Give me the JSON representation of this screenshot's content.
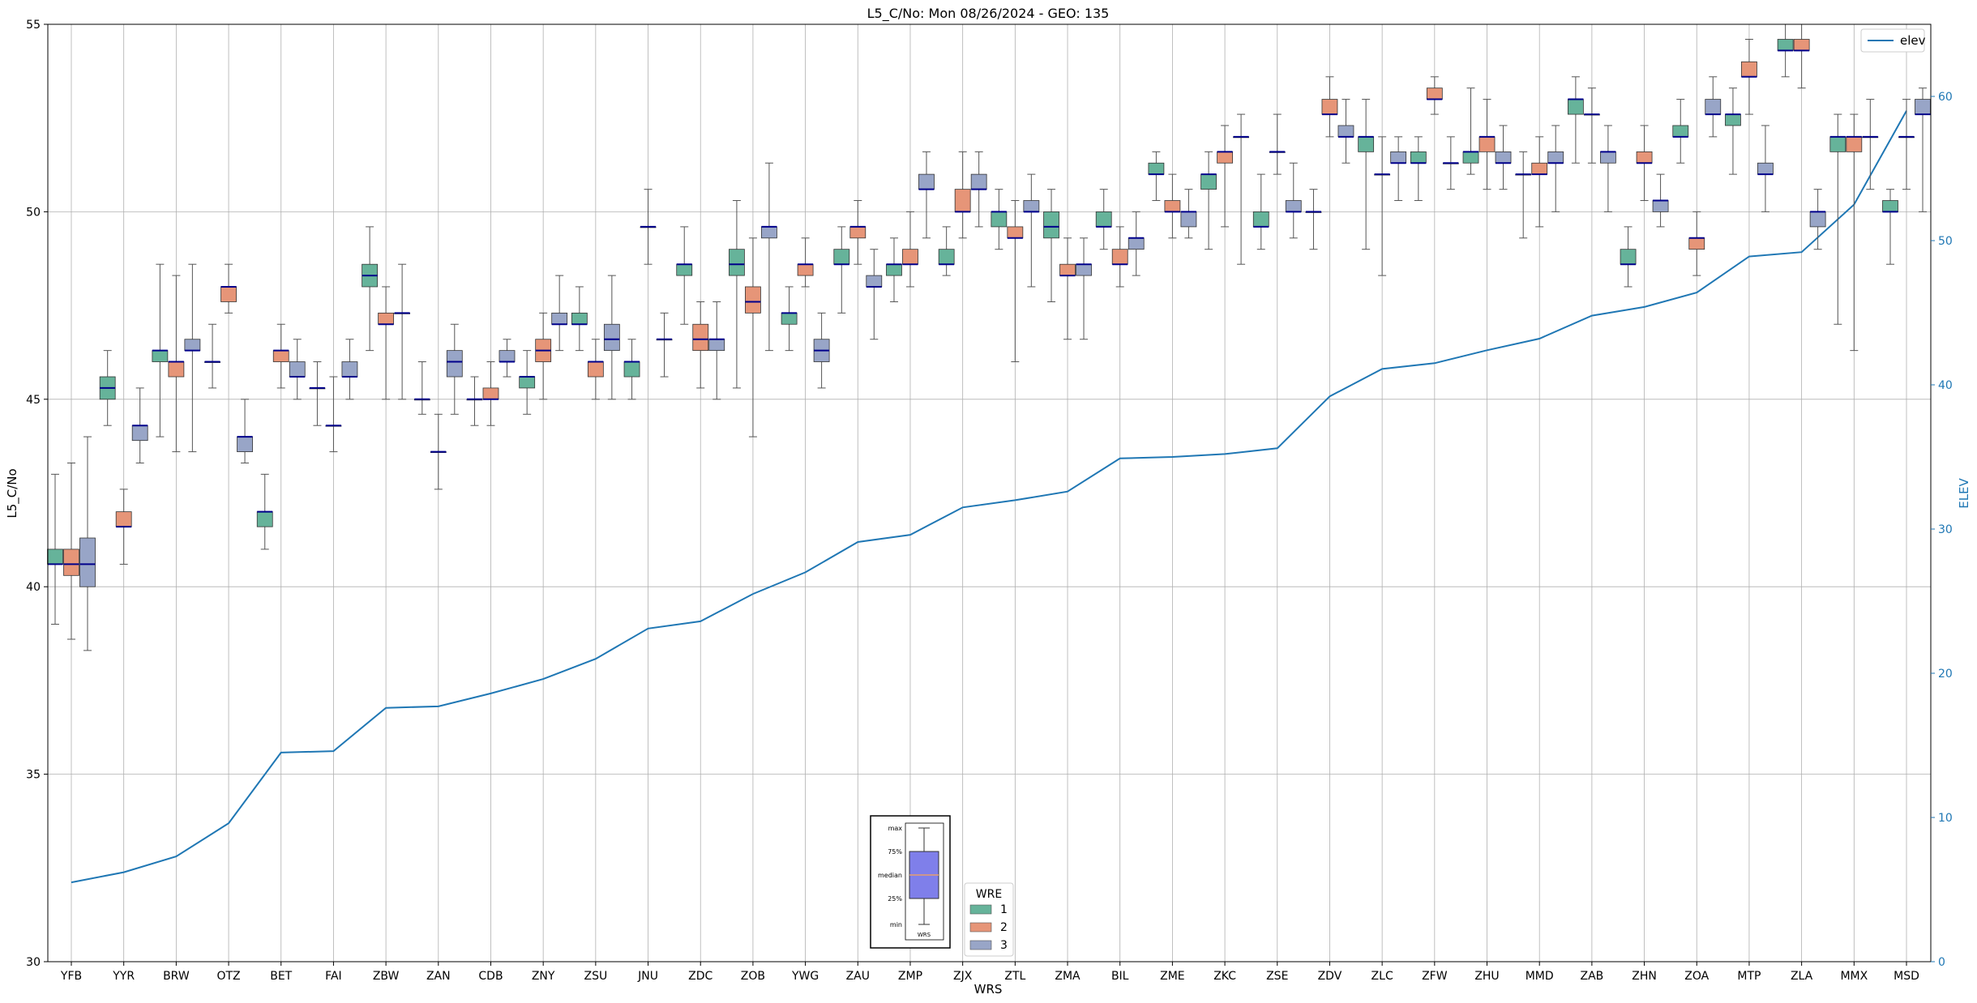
{
  "chart_data": {
    "type": "box",
    "title": "L5_C/No: Mon 08/26/2024 - GEO: 135",
    "xlabel": "WRS",
    "ylabel": "L5_C/No",
    "y2label": "ELEV",
    "ylim": [
      30,
      55
    ],
    "y2lim": [
      0,
      65
    ],
    "yticks": [
      "30",
      "35",
      "40",
      "45",
      "50",
      "55"
    ],
    "y2ticks": [
      "0",
      "10",
      "20",
      "30",
      "40",
      "50",
      "60"
    ],
    "grid": true,
    "series_colors": {
      "1": "#66b39a",
      "2": "#e69578",
      "3": "#98a5c7"
    },
    "median_color": "#00008b",
    "line_color": "#1f77b4",
    "legend_elev": {
      "label": "elev",
      "placement": "top-right"
    },
    "legend_wre": {
      "title": "WRE",
      "entries": [
        "1",
        "2",
        "3"
      ],
      "placement": "bottom-center"
    },
    "key_labels": [
      "max",
      "75%",
      "median",
      "25%",
      "min"
    ],
    "key_xlabel": "WRS",
    "categories": [
      "YFB",
      "YYR",
      "BRW",
      "OTZ",
      "BET",
      "FAI",
      "ZBW",
      "ZAN",
      "CDB",
      "ZNY",
      "ZSU",
      "JNU",
      "ZDC",
      "ZOB",
      "YWG",
      "ZAU",
      "ZMP",
      "ZJX",
      "ZTL",
      "ZMA",
      "BIL",
      "ZME",
      "ZKC",
      "ZSE",
      "ZDV",
      "ZLC",
      "ZFW",
      "ZHU",
      "MMD",
      "ZAB",
      "ZHN",
      "ZOA",
      "MTP",
      "ZLA",
      "MMX",
      "MSD"
    ],
    "elev": [
      5.5,
      6.2,
      7.3,
      9.6,
      14.5,
      14.6,
      17.6,
      17.7,
      18.6,
      19.6,
      21.0,
      23.1,
      23.6,
      25.5,
      27.0,
      29.1,
      29.6,
      31.5,
      32.0,
      32.6,
      34.9,
      35.0,
      35.2,
      35.6,
      39.2,
      41.1,
      41.5,
      42.4,
      43.2,
      44.8,
      45.4,
      46.4,
      48.9,
      49.2,
      52.5,
      59.0
    ],
    "boxes": [
      {
        "station": "YFB",
        "wre": 1,
        "min": 39.0,
        "q1": 40.6,
        "median": 40.6,
        "q3": 41.0,
        "max": 43.0
      },
      {
        "station": "YFB",
        "wre": 2,
        "min": 38.6,
        "q1": 40.3,
        "median": 40.6,
        "q3": 41.0,
        "max": 43.3
      },
      {
        "station": "YFB",
        "wre": 3,
        "min": 38.3,
        "q1": 40.0,
        "median": 40.6,
        "q3": 41.3,
        "max": 44.0
      },
      {
        "station": "YYR",
        "wre": 1,
        "min": 44.3,
        "q1": 45.0,
        "median": 45.3,
        "q3": 45.6,
        "max": 46.3
      },
      {
        "station": "YYR",
        "wre": 2,
        "min": 40.6,
        "q1": 41.6,
        "median": 41.6,
        "q3": 42.0,
        "max": 42.6
      },
      {
        "station": "YYR",
        "wre": 3,
        "min": 43.3,
        "q1": 43.9,
        "median": 44.3,
        "q3": 44.3,
        "max": 45.3
      },
      {
        "station": "BRW",
        "wre": 1,
        "min": 44.0,
        "q1": 46.0,
        "median": 46.3,
        "q3": 46.3,
        "max": 48.6
      },
      {
        "station": "BRW",
        "wre": 2,
        "min": 43.6,
        "q1": 45.6,
        "median": 46.0,
        "q3": 46.0,
        "max": 48.3
      },
      {
        "station": "BRW",
        "wre": 3,
        "min": 43.6,
        "q1": 46.3,
        "median": 46.3,
        "q3": 46.6,
        "max": 48.6
      },
      {
        "station": "OTZ",
        "wre": 1,
        "min": 45.3,
        "q1": 46.0,
        "median": 46.0,
        "q3": 46.0,
        "max": 47.0
      },
      {
        "station": "OTZ",
        "wre": 2,
        "min": 47.3,
        "q1": 47.6,
        "median": 48.0,
        "q3": 48.0,
        "max": 48.6
      },
      {
        "station": "OTZ",
        "wre": 3,
        "min": 43.3,
        "q1": 43.6,
        "median": 44.0,
        "q3": 44.0,
        "max": 45.0
      },
      {
        "station": "BET",
        "wre": 1,
        "min": 41.0,
        "q1": 41.6,
        "median": 42.0,
        "q3": 42.0,
        "max": 43.0
      },
      {
        "station": "BET",
        "wre": 2,
        "min": 45.3,
        "q1": 46.0,
        "median": 46.3,
        "q3": 46.3,
        "max": 47.0
      },
      {
        "station": "BET",
        "wre": 3,
        "min": 45.0,
        "q1": 45.6,
        "median": 45.6,
        "q3": 46.0,
        "max": 46.6
      },
      {
        "station": "FAI",
        "wre": 1,
        "min": 44.3,
        "q1": 45.3,
        "median": 45.3,
        "q3": 45.3,
        "max": 46.0
      },
      {
        "station": "FAI",
        "wre": 2,
        "min": 43.6,
        "q1": 44.3,
        "median": 44.3,
        "q3": 44.3,
        "max": 45.6
      },
      {
        "station": "FAI",
        "wre": 3,
        "min": 45.0,
        "q1": 45.6,
        "median": 45.6,
        "q3": 46.0,
        "max": 46.6
      },
      {
        "station": "ZBW",
        "wre": 1,
        "min": 46.3,
        "q1": 48.0,
        "median": 48.3,
        "q3": 48.6,
        "max": 49.6
      },
      {
        "station": "ZBW",
        "wre": 2,
        "min": 45.0,
        "q1": 47.0,
        "median": 47.0,
        "q3": 47.3,
        "max": 48.0
      },
      {
        "station": "ZBW",
        "wre": 3,
        "min": 45.0,
        "q1": 47.3,
        "median": 47.3,
        "q3": 47.3,
        "max": 48.6
      },
      {
        "station": "ZAN",
        "wre": 1,
        "min": 44.6,
        "q1": 45.0,
        "median": 45.0,
        "q3": 45.0,
        "max": 46.0
      },
      {
        "station": "ZAN",
        "wre": 2,
        "min": 42.6,
        "q1": 43.6,
        "median": 43.6,
        "q3": 43.6,
        "max": 44.6
      },
      {
        "station": "ZAN",
        "wre": 3,
        "min": 44.6,
        "q1": 45.6,
        "median": 46.0,
        "q3": 46.3,
        "max": 47.0
      },
      {
        "station": "CDB",
        "wre": 1,
        "min": 44.3,
        "q1": 45.0,
        "median": 45.0,
        "q3": 45.0,
        "max": 45.6
      },
      {
        "station": "CDB",
        "wre": 2,
        "min": 44.3,
        "q1": 45.0,
        "median": 45.0,
        "q3": 45.3,
        "max": 46.0
      },
      {
        "station": "CDB",
        "wre": 3,
        "min": 45.6,
        "q1": 46.0,
        "median": 46.0,
        "q3": 46.3,
        "max": 46.6
      },
      {
        "station": "ZNY",
        "wre": 1,
        "min": 44.6,
        "q1": 45.3,
        "median": 45.6,
        "q3": 45.6,
        "max": 46.3
      },
      {
        "station": "ZNY",
        "wre": 2,
        "min": 45.0,
        "q1": 46.0,
        "median": 46.3,
        "q3": 46.6,
        "max": 47.3
      },
      {
        "station": "ZNY",
        "wre": 3,
        "min": 46.3,
        "q1": 47.0,
        "median": 47.0,
        "q3": 47.3,
        "max": 48.3
      },
      {
        "station": "ZSU",
        "wre": 1,
        "min": 46.3,
        "q1": 47.0,
        "median": 47.0,
        "q3": 47.3,
        "max": 48.0
      },
      {
        "station": "ZSU",
        "wre": 2,
        "min": 45.0,
        "q1": 45.6,
        "median": 46.0,
        "q3": 46.0,
        "max": 46.6
      },
      {
        "station": "ZSU",
        "wre": 3,
        "min": 45.0,
        "q1": 46.3,
        "median": 46.6,
        "q3": 47.0,
        "max": 48.3
      },
      {
        "station": "JNU",
        "wre": 1,
        "min": 45.0,
        "q1": 45.6,
        "median": 46.0,
        "q3": 46.0,
        "max": 46.6
      },
      {
        "station": "JNU",
        "wre": 2,
        "min": 48.6,
        "q1": 49.6,
        "median": 49.6,
        "q3": 49.6,
        "max": 50.6
      },
      {
        "station": "JNU",
        "wre": 3,
        "min": 45.6,
        "q1": 46.6,
        "median": 46.6,
        "q3": 46.6,
        "max": 47.3
      },
      {
        "station": "ZDC",
        "wre": 1,
        "min": 47.0,
        "q1": 48.3,
        "median": 48.6,
        "q3": 48.6,
        "max": 49.6
      },
      {
        "station": "ZDC",
        "wre": 2,
        "min": 45.3,
        "q1": 46.3,
        "median": 46.6,
        "q3": 47.0,
        "max": 47.6
      },
      {
        "station": "ZDC",
        "wre": 3,
        "min": 45.0,
        "q1": 46.3,
        "median": 46.6,
        "q3": 46.6,
        "max": 47.6
      },
      {
        "station": "ZOB",
        "wre": 1,
        "min": 45.3,
        "q1": 48.3,
        "median": 48.6,
        "q3": 49.0,
        "max": 50.3
      },
      {
        "station": "ZOB",
        "wre": 2,
        "min": 44.0,
        "q1": 47.3,
        "median": 47.6,
        "q3": 48.0,
        "max": 49.3
      },
      {
        "station": "ZOB",
        "wre": 3,
        "min": 46.3,
        "q1": 49.3,
        "median": 49.6,
        "q3": 49.6,
        "max": 51.3
      },
      {
        "station": "YWG",
        "wre": 1,
        "min": 46.3,
        "q1": 47.0,
        "median": 47.3,
        "q3": 47.3,
        "max": 48.0
      },
      {
        "station": "YWG",
        "wre": 2,
        "min": 48.0,
        "q1": 48.3,
        "median": 48.6,
        "q3": 48.6,
        "max": 49.3
      },
      {
        "station": "YWG",
        "wre": 3,
        "min": 45.3,
        "q1": 46.0,
        "median": 46.3,
        "q3": 46.6,
        "max": 47.3
      },
      {
        "station": "ZAU",
        "wre": 1,
        "min": 47.3,
        "q1": 48.6,
        "median": 48.6,
        "q3": 49.0,
        "max": 49.6
      },
      {
        "station": "ZAU",
        "wre": 2,
        "min": 48.6,
        "q1": 49.3,
        "median": 49.6,
        "q3": 49.6,
        "max": 50.3
      },
      {
        "station": "ZAU",
        "wre": 3,
        "min": 46.6,
        "q1": 48.0,
        "median": 48.0,
        "q3": 48.3,
        "max": 49.0
      },
      {
        "station": "ZMP",
        "wre": 1,
        "min": 47.6,
        "q1": 48.3,
        "median": 48.6,
        "q3": 48.6,
        "max": 49.3
      },
      {
        "station": "ZMP",
        "wre": 2,
        "min": 48.0,
        "q1": 48.6,
        "median": 48.6,
        "q3": 49.0,
        "max": 50.0
      },
      {
        "station": "ZMP",
        "wre": 3,
        "min": 49.3,
        "q1": 50.6,
        "median": 50.6,
        "q3": 51.0,
        "max": 51.6
      },
      {
        "station": "ZJX",
        "wre": 1,
        "min": 48.3,
        "q1": 48.6,
        "median": 48.6,
        "q3": 49.0,
        "max": 49.6
      },
      {
        "station": "ZJX",
        "wre": 2,
        "min": 49.3,
        "q1": 50.0,
        "median": 50.0,
        "q3": 50.6,
        "max": 51.6
      },
      {
        "station": "ZJX",
        "wre": 3,
        "min": 49.6,
        "q1": 50.6,
        "median": 50.6,
        "q3": 51.0,
        "max": 51.6
      },
      {
        "station": "ZTL",
        "wre": 1,
        "min": 49.0,
        "q1": 49.6,
        "median": 50.0,
        "q3": 50.0,
        "max": 50.6
      },
      {
        "station": "ZTL",
        "wre": 2,
        "min": 46.0,
        "q1": 49.3,
        "median": 49.3,
        "q3": 49.6,
        "max": 50.3
      },
      {
        "station": "ZTL",
        "wre": 3,
        "min": 48.0,
        "q1": 50.0,
        "median": 50.0,
        "q3": 50.3,
        "max": 51.0
      },
      {
        "station": "ZMA",
        "wre": 1,
        "min": 47.6,
        "q1": 49.3,
        "median": 49.6,
        "q3": 50.0,
        "max": 50.6
      },
      {
        "station": "ZMA",
        "wre": 2,
        "min": 46.6,
        "q1": 48.3,
        "median": 48.3,
        "q3": 48.6,
        "max": 49.3
      },
      {
        "station": "ZMA",
        "wre": 3,
        "min": 46.6,
        "q1": 48.3,
        "median": 48.6,
        "q3": 48.6,
        "max": 49.3
      },
      {
        "station": "BIL",
        "wre": 1,
        "min": 49.0,
        "q1": 49.6,
        "median": 49.6,
        "q3": 50.0,
        "max": 50.6
      },
      {
        "station": "BIL",
        "wre": 2,
        "min": 48.0,
        "q1": 48.6,
        "median": 48.6,
        "q3": 49.0,
        "max": 49.6
      },
      {
        "station": "BIL",
        "wre": 3,
        "min": 48.3,
        "q1": 49.0,
        "median": 49.3,
        "q3": 49.3,
        "max": 50.0
      },
      {
        "station": "ZME",
        "wre": 1,
        "min": 50.3,
        "q1": 51.0,
        "median": 51.0,
        "q3": 51.3,
        "max": 51.6
      },
      {
        "station": "ZME",
        "wre": 2,
        "min": 49.3,
        "q1": 50.0,
        "median": 50.0,
        "q3": 50.3,
        "max": 51.0
      },
      {
        "station": "ZME",
        "wre": 3,
        "min": 49.3,
        "q1": 49.6,
        "median": 50.0,
        "q3": 50.0,
        "max": 50.6
      },
      {
        "station": "ZKC",
        "wre": 1,
        "min": 49.0,
        "q1": 50.6,
        "median": 51.0,
        "q3": 51.0,
        "max": 51.6
      },
      {
        "station": "ZKC",
        "wre": 2,
        "min": 49.6,
        "q1": 51.3,
        "median": 51.6,
        "q3": 51.6,
        "max": 52.3
      },
      {
        "station": "ZKC",
        "wre": 3,
        "min": 48.6,
        "q1": 52.0,
        "median": 52.0,
        "q3": 52.0,
        "max": 52.6
      },
      {
        "station": "ZSE",
        "wre": 1,
        "min": 49.0,
        "q1": 49.6,
        "median": 49.6,
        "q3": 50.0,
        "max": 51.0
      },
      {
        "station": "ZSE",
        "wre": 2,
        "min": 51.0,
        "q1": 51.6,
        "median": 51.6,
        "q3": 51.6,
        "max": 52.6
      },
      {
        "station": "ZSE",
        "wre": 3,
        "min": 49.3,
        "q1": 50.0,
        "median": 50.0,
        "q3": 50.3,
        "max": 51.3
      },
      {
        "station": "ZDV",
        "wre": 1,
        "min": 49.0,
        "q1": 50.0,
        "median": 50.0,
        "q3": 50.0,
        "max": 50.6
      },
      {
        "station": "ZDV",
        "wre": 2,
        "min": 52.0,
        "q1": 52.6,
        "median": 52.6,
        "q3": 53.0,
        "max": 53.6
      },
      {
        "station": "ZDV",
        "wre": 3,
        "min": 51.3,
        "q1": 52.0,
        "median": 52.0,
        "q3": 52.3,
        "max": 53.0
      },
      {
        "station": "ZLC",
        "wre": 1,
        "min": 49.0,
        "q1": 51.6,
        "median": 52.0,
        "q3": 52.0,
        "max": 53.0
      },
      {
        "station": "ZLC",
        "wre": 2,
        "min": 48.3,
        "q1": 51.0,
        "median": 51.0,
        "q3": 51.0,
        "max": 52.0
      },
      {
        "station": "ZLC",
        "wre": 3,
        "min": 50.3,
        "q1": 51.3,
        "median": 51.3,
        "q3": 51.6,
        "max": 52.0
      },
      {
        "station": "ZFW",
        "wre": 1,
        "min": 50.3,
        "q1": 51.3,
        "median": 51.3,
        "q3": 51.6,
        "max": 52.0
      },
      {
        "station": "ZFW",
        "wre": 2,
        "min": 52.6,
        "q1": 53.0,
        "median": 53.0,
        "q3": 53.3,
        "max": 53.6
      },
      {
        "station": "ZFW",
        "wre": 3,
        "min": 50.6,
        "q1": 51.3,
        "median": 51.3,
        "q3": 51.3,
        "max": 52.0
      },
      {
        "station": "ZHU",
        "wre": 1,
        "min": 51.0,
        "q1": 51.3,
        "median": 51.6,
        "q3": 51.6,
        "max": 53.3
      },
      {
        "station": "ZHU",
        "wre": 2,
        "min": 50.6,
        "q1": 51.6,
        "median": 52.0,
        "q3": 52.0,
        "max": 53.0
      },
      {
        "station": "ZHU",
        "wre": 3,
        "min": 50.6,
        "q1": 51.3,
        "median": 51.3,
        "q3": 51.6,
        "max": 52.3
      },
      {
        "station": "MMD",
        "wre": 1,
        "min": 49.3,
        "q1": 51.0,
        "median": 51.0,
        "q3": 51.0,
        "max": 51.6
      },
      {
        "station": "MMD",
        "wre": 2,
        "min": 49.6,
        "q1": 51.0,
        "median": 51.0,
        "q3": 51.3,
        "max": 52.0
      },
      {
        "station": "MMD",
        "wre": 3,
        "min": 50.0,
        "q1": 51.3,
        "median": 51.3,
        "q3": 51.6,
        "max": 52.3
      },
      {
        "station": "ZAB",
        "wre": 1,
        "min": 51.3,
        "q1": 52.6,
        "median": 53.0,
        "q3": 53.0,
        "max": 53.6
      },
      {
        "station": "ZAB",
        "wre": 2,
        "min": 51.3,
        "q1": 52.6,
        "median": 52.6,
        "q3": 52.6,
        "max": 53.3
      },
      {
        "station": "ZAB",
        "wre": 3,
        "min": 50.0,
        "q1": 51.3,
        "median": 51.6,
        "q3": 51.6,
        "max": 52.3
      },
      {
        "station": "ZHN",
        "wre": 1,
        "min": 48.0,
        "q1": 48.6,
        "median": 48.6,
        "q3": 49.0,
        "max": 49.6
      },
      {
        "station": "ZHN",
        "wre": 2,
        "min": 50.3,
        "q1": 51.3,
        "median": 51.3,
        "q3": 51.6,
        "max": 52.3
      },
      {
        "station": "ZHN",
        "wre": 3,
        "min": 49.6,
        "q1": 50.0,
        "median": 50.3,
        "q3": 50.3,
        "max": 51.0
      },
      {
        "station": "ZOA",
        "wre": 1,
        "min": 51.3,
        "q1": 52.0,
        "median": 52.0,
        "q3": 52.3,
        "max": 53.0
      },
      {
        "station": "ZOA",
        "wre": 2,
        "min": 48.3,
        "q1": 49.0,
        "median": 49.3,
        "q3": 49.3,
        "max": 50.0
      },
      {
        "station": "ZOA",
        "wre": 3,
        "min": 52.0,
        "q1": 52.6,
        "median": 52.6,
        "q3": 53.0,
        "max": 53.6
      },
      {
        "station": "MTP",
        "wre": 1,
        "min": 51.0,
        "q1": 52.3,
        "median": 52.6,
        "q3": 52.6,
        "max": 53.3
      },
      {
        "station": "MTP",
        "wre": 2,
        "min": 52.6,
        "q1": 53.6,
        "median": 53.6,
        "q3": 54.0,
        "max": 54.6
      },
      {
        "station": "MTP",
        "wre": 3,
        "min": 50.0,
        "q1": 51.0,
        "median": 51.0,
        "q3": 51.3,
        "max": 52.3
      },
      {
        "station": "ZLA",
        "wre": 1,
        "min": 53.6,
        "q1": 54.3,
        "median": 54.3,
        "q3": 54.6,
        "max": 55.0
      },
      {
        "station": "ZLA",
        "wre": 2,
        "min": 53.3,
        "q1": 54.3,
        "median": 54.3,
        "q3": 54.6,
        "max": 55.0
      },
      {
        "station": "ZLA",
        "wre": 3,
        "min": 49.0,
        "q1": 49.6,
        "median": 50.0,
        "q3": 50.0,
        "max": 50.6
      },
      {
        "station": "MMX",
        "wre": 1,
        "min": 47.0,
        "q1": 51.6,
        "median": 52.0,
        "q3": 52.0,
        "max": 52.6
      },
      {
        "station": "MMX",
        "wre": 2,
        "min": 46.3,
        "q1": 51.6,
        "median": 52.0,
        "q3": 52.0,
        "max": 52.6
      },
      {
        "station": "MMX",
        "wre": 3,
        "min": 50.6,
        "q1": 52.0,
        "median": 52.0,
        "q3": 52.0,
        "max": 53.0
      },
      {
        "station": "MSD",
        "wre": 1,
        "min": 48.6,
        "q1": 50.0,
        "median": 50.0,
        "q3": 50.3,
        "max": 50.6
      },
      {
        "station": "MSD",
        "wre": 2,
        "min": 50.6,
        "q1": 52.0,
        "median": 52.0,
        "q3": 52.0,
        "max": 53.0
      },
      {
        "station": "MSD",
        "wre": 3,
        "min": 50.0,
        "q1": 52.6,
        "median": 52.6,
        "q3": 53.0,
        "max": 53.3
      }
    ]
  }
}
